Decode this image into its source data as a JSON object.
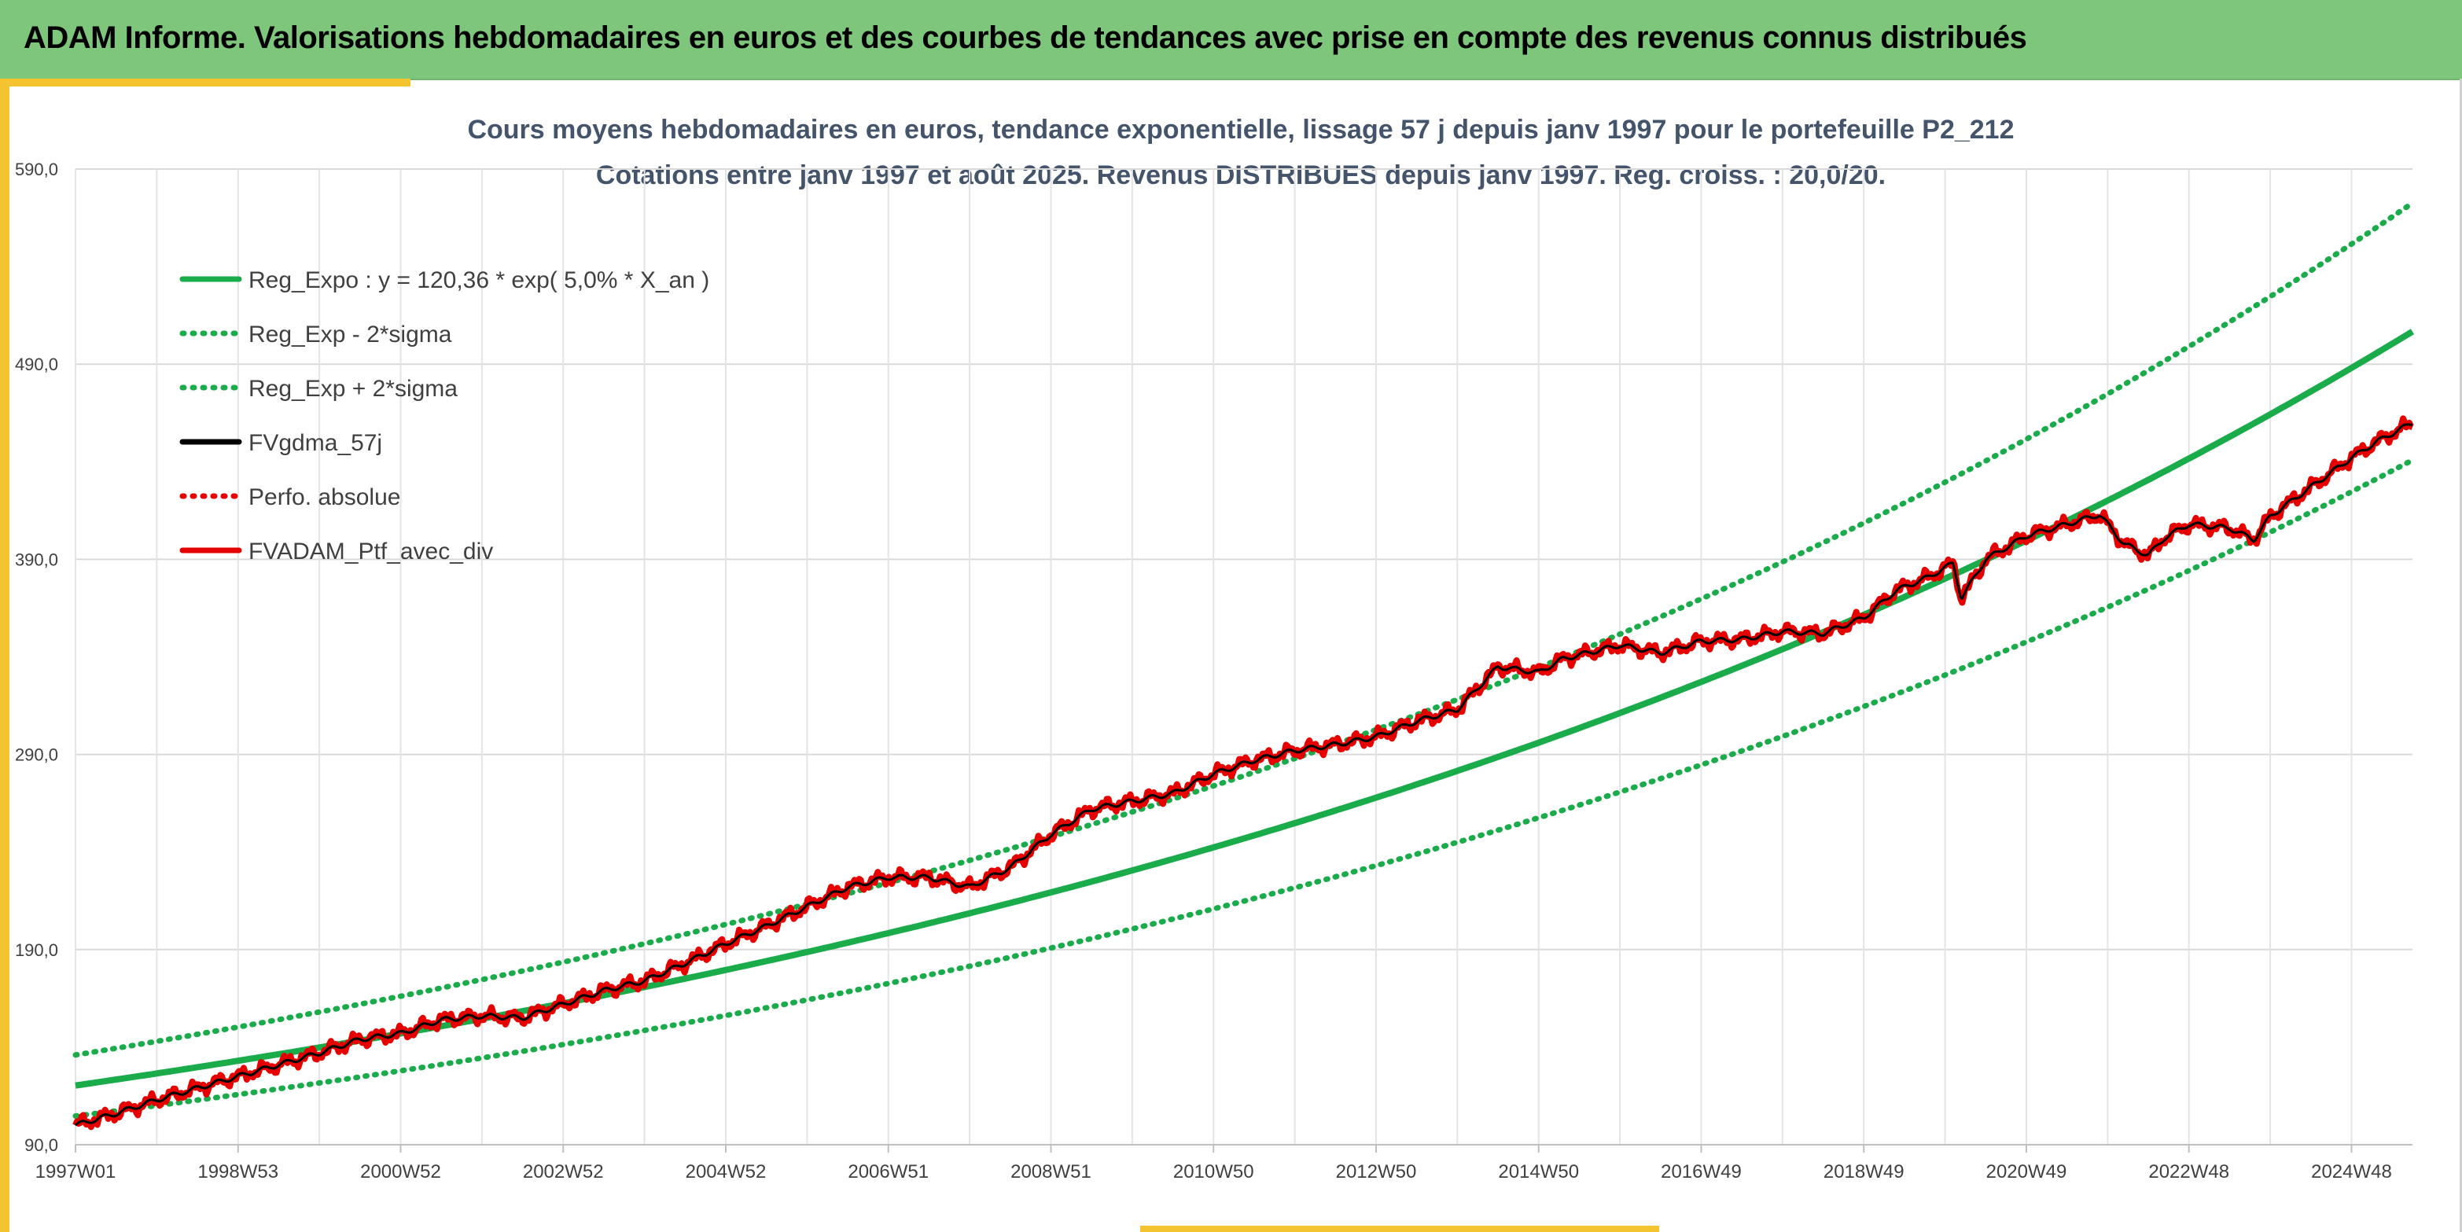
{
  "header": {
    "title": "ADAM Informe. Valorisations hebdomadaires en euros et des courbes de tendances avec prise en compte des revenus connus distribués"
  },
  "colors": {
    "banner": "#7dc67b",
    "frame": "#f4c430",
    "reg": "#1aab4b",
    "fv": "#000000",
    "red": "#e60000",
    "title": "#44546a"
  },
  "chart_data": {
    "type": "line",
    "title": "Cours moyens hebdomadaires en euros, tendance exponentielle, lissage 57 j depuis janv 1997 pour le portefeuille P2_212",
    "subtitle": "Cotations entre janv 1997 et août 2025. Revenus DISTRIBUES depuis janv 1997. Reg. croiss. : 20,0/20.",
    "xlabel": "",
    "ylabel": "",
    "ylim": [
      90,
      590
    ],
    "y_ticks": [
      "90,0",
      "190,0",
      "290,0",
      "390,0",
      "490,0",
      "590,0"
    ],
    "x_ticks": [
      "1997W01",
      "1998W53",
      "2000W52",
      "2002W52",
      "2004W52",
      "2006W51",
      "2008W51",
      "2010W50",
      "2012W50",
      "2014W50",
      "2016W49",
      "2018W49",
      "2020W49",
      "2022W48",
      "2024W48"
    ],
    "x_tick_years": [
      1997.0,
      1999.0,
      2001.0,
      2003.0,
      2005.0,
      2007.0,
      2009.0,
      2011.0,
      2013.0,
      2015.0,
      2017.0,
      2019.0,
      2021.0,
      2023.0,
      2025.0
    ],
    "xlim": [
      1997.0,
      2025.75
    ],
    "grid": true,
    "legend_position": "top-left",
    "regression": {
      "a": 120.36,
      "rate": 0.05,
      "sigma_band": 0.13
    },
    "series": [
      {
        "name": "Reg_Expo : y = 120,36 * exp( 5,0% *  X_an )",
        "style": "solid",
        "color": "#1aab4b"
      },
      {
        "name": "Reg_Exp - 2*sigma",
        "style": "dotted",
        "color": "#1aab4b"
      },
      {
        "name": "Reg_Exp + 2*sigma",
        "style": "dotted",
        "color": "#1aab4b"
      },
      {
        "name": "FVgdma_57j",
        "style": "solid",
        "color": "#000000"
      },
      {
        "name": "Perfo. absolue",
        "style": "dotted",
        "color": "#e60000"
      },
      {
        "name": "FVADAM_Ptf_avec_div",
        "style": "solid",
        "color": "#e60000"
      }
    ],
    "portfolio_points": {
      "x": [
        1997.0,
        1997.5,
        1998.0,
        1998.5,
        1999.0,
        1999.5,
        2000.0,
        2000.5,
        2001.0,
        2001.5,
        2002.0,
        2002.5,
        2003.0,
        2003.5,
        2004.0,
        2004.5,
        2005.0,
        2005.5,
        2006.0,
        2006.5,
        2007.0,
        2007.5,
        2008.0,
        2008.5,
        2009.0,
        2009.5,
        2010.0,
        2010.5,
        2011.0,
        2011.5,
        2012.0,
        2012.5,
        2013.0,
        2013.5,
        2014.0,
        2014.5,
        2015.0,
        2015.3,
        2015.7,
        2016.0,
        2016.5,
        2017.0,
        2017.5,
        2018.0,
        2018.5,
        2019.0,
        2019.4,
        2019.8,
        2020.1,
        2020.2,
        2020.5,
        2021.0,
        2021.5,
        2021.9,
        2022.2,
        2022.5,
        2022.7,
        2023.0,
        2023.5,
        2023.8,
        2024.0,
        2024.5,
        2025.0,
        2025.3,
        2025.75
      ],
      "y": [
        100,
        106,
        113,
        119,
        125,
        131,
        137,
        144,
        147,
        154,
        156,
        155,
        162,
        169,
        174,
        183,
        193,
        202,
        212,
        222,
        227,
        227,
        222,
        232,
        249,
        262,
        266,
        270,
        280,
        287,
        292,
        295,
        299,
        307,
        313,
        335,
        332,
        339,
        343,
        346,
        342,
        348,
        349,
        353,
        352,
        360,
        374,
        381,
        388,
        370,
        390,
        402,
        408,
        413,
        398,
        392,
        401,
        408,
        406,
        400,
        412,
        427,
        442,
        450,
        460
      ]
    }
  }
}
